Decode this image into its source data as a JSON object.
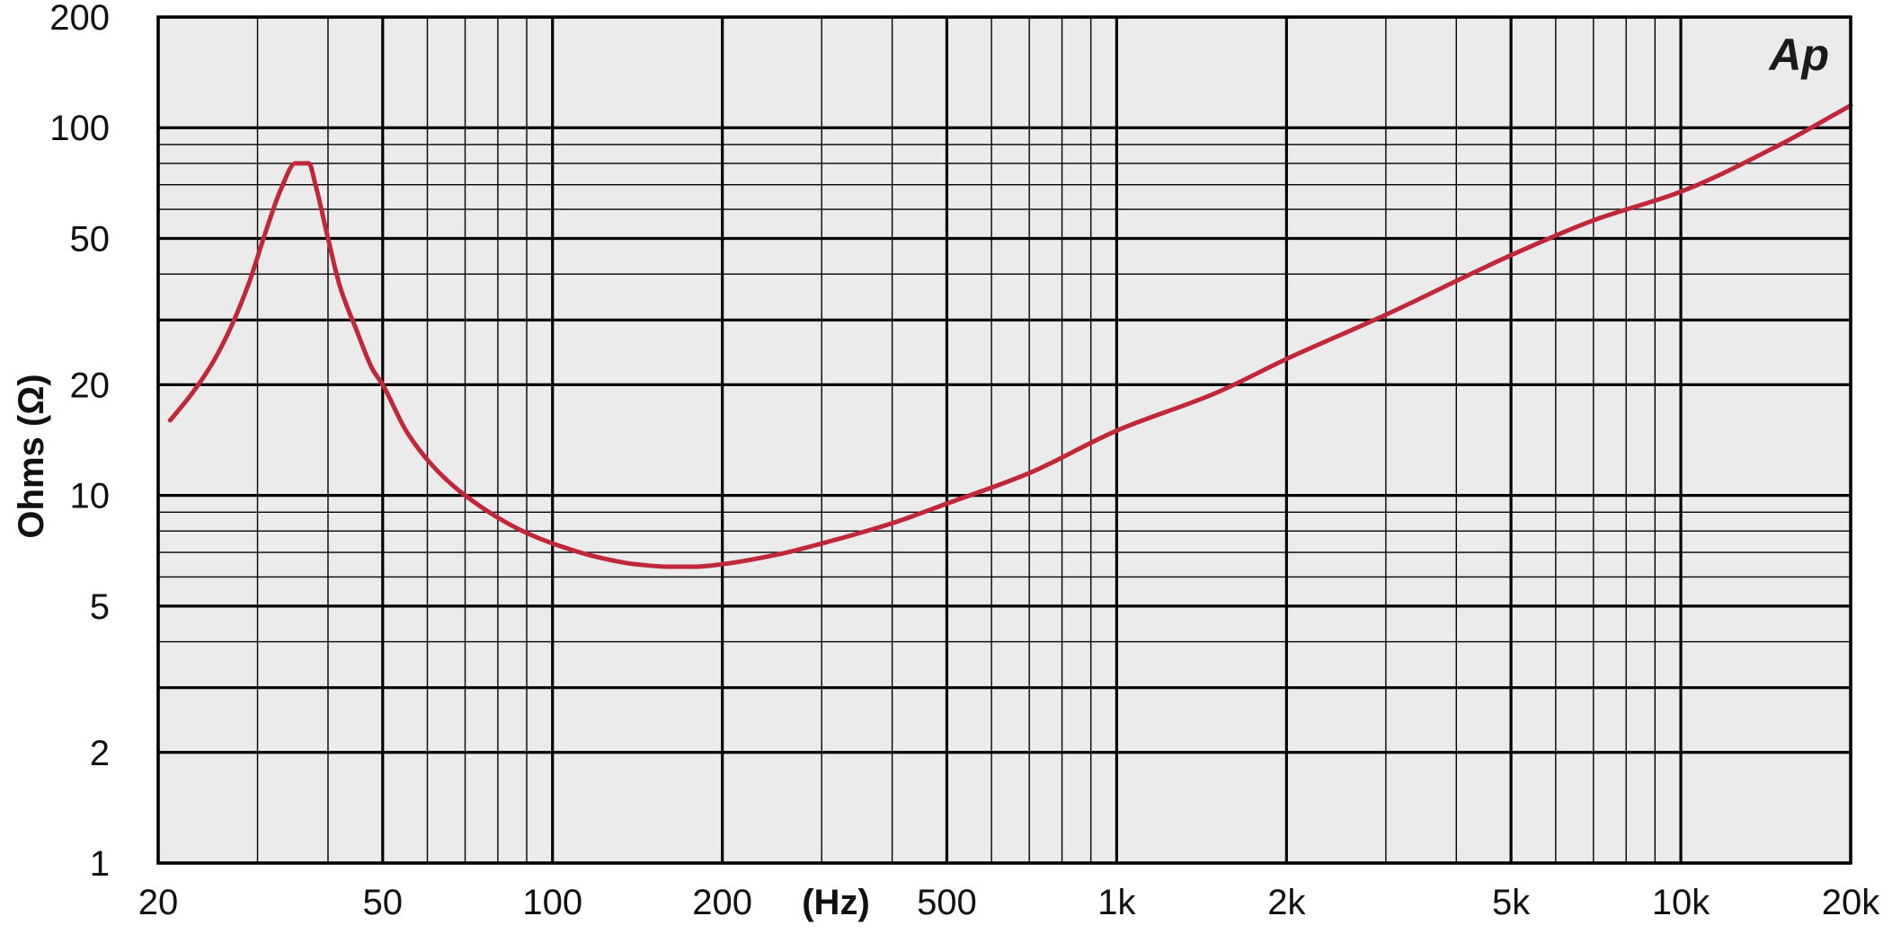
{
  "brand": {
    "logo_text": "Ap"
  },
  "colors": {
    "plot_background": "#ebebeb",
    "grid_major": "#000000",
    "grid_minor": "#000000",
    "curve": "#c0283a",
    "text": "#111111"
  },
  "chart_data": {
    "type": "line",
    "title": "",
    "xlabel": "(Hz)",
    "ylabel": "Ohms (Ω)",
    "x_scale": "log",
    "y_scale": "log",
    "xlim": [
      20,
      20000
    ],
    "ylim": [
      1,
      200
    ],
    "grid": true,
    "x_ticks": [
      {
        "value": 20,
        "label": "20"
      },
      {
        "value": 50,
        "label": "50"
      },
      {
        "value": 100,
        "label": "100"
      },
      {
        "value": 200,
        "label": "200"
      },
      {
        "value": 500,
        "label": "500"
      },
      {
        "value": 1000,
        "label": "1k"
      },
      {
        "value": 2000,
        "label": "2k"
      },
      {
        "value": 5000,
        "label": "5k"
      },
      {
        "value": 10000,
        "label": "10k"
      },
      {
        "value": 20000,
        "label": "20k"
      }
    ],
    "y_ticks": [
      {
        "value": 1,
        "label": "1"
      },
      {
        "value": 2,
        "label": "2"
      },
      {
        "value": 5,
        "label": "5"
      },
      {
        "value": 10,
        "label": "10"
      },
      {
        "value": 20,
        "label": "20"
      },
      {
        "value": 50,
        "label": "50"
      },
      {
        "value": 100,
        "label": "100"
      },
      {
        "value": 200,
        "label": "200"
      }
    ],
    "x_major_grid": [
      20,
      50,
      100,
      200,
      500,
      1000,
      2000,
      5000,
      10000,
      20000
    ],
    "x_minor_grid": [
      30,
      40,
      60,
      70,
      80,
      90,
      300,
      400,
      600,
      700,
      800,
      900,
      3000,
      4000,
      6000,
      7000,
      8000,
      9000
    ],
    "y_major_grid": [
      1,
      2,
      3,
      5,
      10,
      20,
      30,
      50,
      100,
      200
    ],
    "y_minor_grid": [
      4,
      6,
      7,
      8,
      9,
      40,
      60,
      70,
      80,
      90
    ],
    "series": [
      {
        "x": [
          21,
          23,
          25,
          27,
          29,
          31,
          33,
          35,
          36,
          37,
          38,
          40,
          42,
          45,
          48,
          50,
          55,
          60,
          65,
          70,
          80,
          90,
          100,
          120,
          140,
          160,
          180,
          200,
          250,
          300,
          400,
          500,
          700,
          1000,
          1500,
          2000,
          3000,
          5000,
          7000,
          10000,
          15000,
          20000
        ],
        "y": [
          16,
          19,
          23,
          29,
          38,
          52,
          68,
          80,
          80,
          80,
          70,
          50,
          37,
          28,
          22,
          20,
          15,
          12.5,
          11,
          10,
          8.7,
          7.9,
          7.4,
          6.8,
          6.5,
          6.4,
          6.4,
          6.5,
          6.9,
          7.4,
          8.4,
          9.5,
          11.5,
          15,
          19,
          23.5,
          31,
          45,
          56,
          67,
          90,
          115
        ]
      }
    ]
  }
}
